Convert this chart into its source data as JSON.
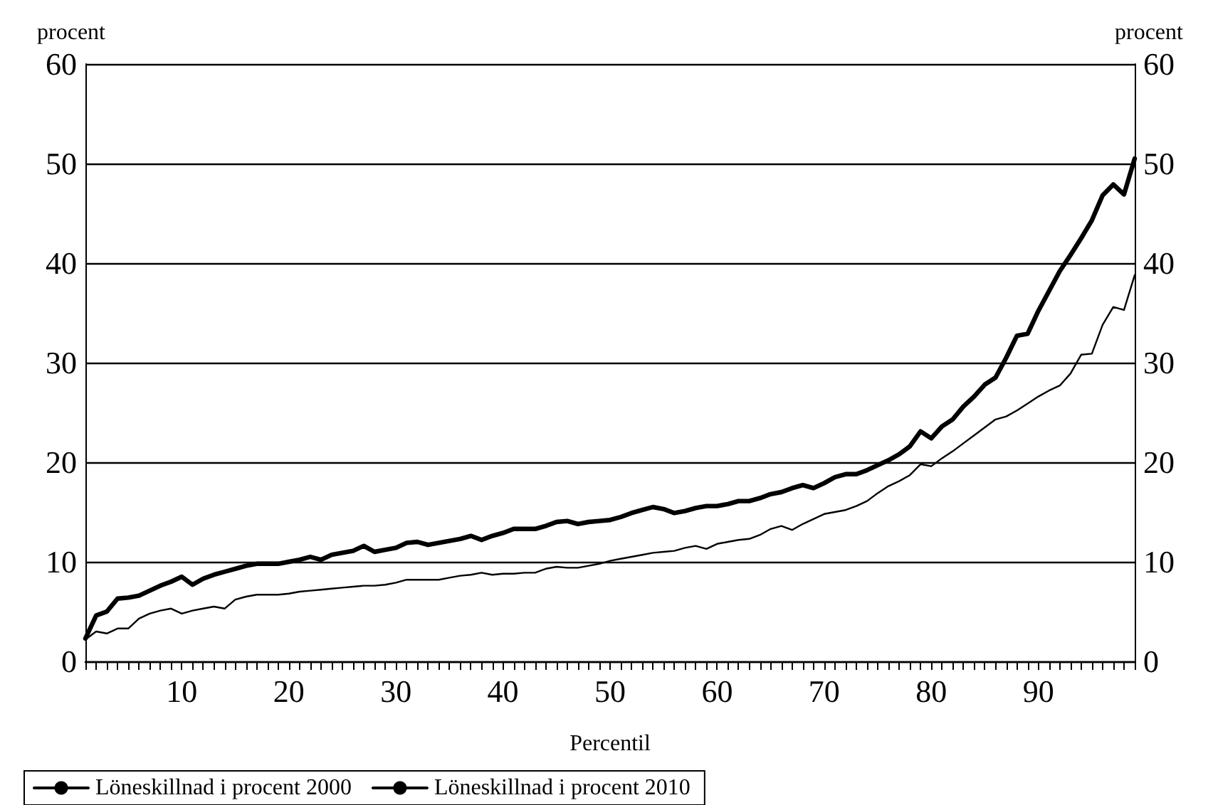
{
  "chart_data": {
    "type": "line",
    "xlabel": "Percentil",
    "ylabel": "procent",
    "y2label": "procent",
    "categories": [
      null,
      null,
      null,
      null,
      null,
      null,
      null,
      null,
      null,
      "10",
      null,
      null,
      null,
      null,
      null,
      null,
      null,
      null,
      null,
      "20",
      null,
      null,
      null,
      null,
      null,
      null,
      null,
      null,
      null,
      "30",
      null,
      null,
      null,
      null,
      null,
      null,
      null,
      null,
      null,
      "40",
      null,
      null,
      null,
      null,
      null,
      null,
      null,
      null,
      null,
      "50",
      null,
      null,
      null,
      null,
      null,
      null,
      null,
      null,
      null,
      "60",
      null,
      null,
      null,
      null,
      null,
      null,
      null,
      null,
      null,
      "70",
      null,
      null,
      null,
      null,
      null,
      null,
      null,
      null,
      null,
      "80",
      null,
      null,
      null,
      null,
      null,
      null,
      null,
      null,
      null,
      "90",
      null,
      null,
      null,
      null,
      null,
      null,
      null,
      null,
      null
    ],
    "ylim": [
      0,
      60
    ],
    "yticks": [
      0,
      10,
      20,
      30,
      40,
      50,
      60
    ],
    "y2lim": [
      0,
      60
    ],
    "y2ticks": [
      0,
      10,
      20,
      30,
      40,
      50,
      60
    ],
    "grid": "y",
    "legend": "bottom",
    "marker": "none",
    "line_style": "solid",
    "series": [
      {
        "name": "Löneskillnad i procent 2000",
        "color": "#000000",
        "values": [
          2.3,
          4.6,
          5.0,
          6.3,
          6.4,
          6.6,
          7.1,
          7.6,
          8.0,
          8.5,
          7.7,
          8.3,
          8.7,
          9.0,
          9.3,
          9.6,
          9.8,
          9.8,
          9.8,
          10.0,
          10.2,
          10.5,
          10.2,
          10.7,
          10.9,
          11.1,
          11.6,
          11.0,
          11.2,
          11.4,
          11.9,
          12.0,
          11.7,
          11.9,
          12.1,
          12.3,
          12.6,
          12.2,
          12.6,
          12.9,
          13.3,
          13.3,
          13.3,
          13.6,
          14.0,
          14.1,
          13.8,
          14.0,
          14.1,
          14.2,
          14.5,
          14.9,
          15.2,
          15.5,
          15.3,
          14.9,
          15.1,
          15.4,
          15.6,
          15.6,
          15.8,
          16.1,
          16.1,
          16.4,
          16.8,
          17.0,
          17.4,
          17.7,
          17.4,
          17.9,
          18.5,
          18.8,
          18.8,
          19.2,
          19.7,
          20.2,
          20.8,
          21.6,
          23.1,
          22.4,
          23.6,
          24.3,
          25.6,
          26.6,
          27.8,
          28.5,
          30.5,
          32.7,
          32.9,
          35.2,
          37.2,
          39.2,
          40.8,
          42.5,
          44.3,
          46.8,
          47.9,
          46.9,
          50.5
        ]
      },
      {
        "name": "Löneskillnad i procent 2010",
        "color": "#000000",
        "values": [
          2.2,
          3.0,
          2.8,
          3.3,
          3.3,
          4.3,
          4.8,
          5.1,
          5.3,
          4.8,
          5.1,
          5.3,
          5.5,
          5.3,
          6.2,
          6.5,
          6.7,
          6.7,
          6.7,
          6.8,
          7.0,
          7.1,
          7.2,
          7.3,
          7.4,
          7.5,
          7.6,
          7.6,
          7.7,
          7.9,
          8.2,
          8.2,
          8.2,
          8.2,
          8.4,
          8.6,
          8.7,
          8.9,
          8.7,
          8.8,
          8.8,
          8.9,
          8.9,
          9.3,
          9.5,
          9.4,
          9.4,
          9.6,
          9.8,
          10.1,
          10.3,
          10.5,
          10.7,
          10.9,
          11.0,
          11.1,
          11.4,
          11.6,
          11.3,
          11.8,
          12.0,
          12.2,
          12.3,
          12.7,
          13.3,
          13.6,
          13.2,
          13.8,
          14.3,
          14.8,
          15.0,
          15.2,
          15.6,
          16.1,
          16.9,
          17.6,
          18.1,
          18.7,
          19.8,
          19.6,
          20.4,
          21.1,
          21.9,
          22.7,
          23.5,
          24.3,
          24.6,
          25.2,
          25.9,
          26.6,
          27.2,
          27.7,
          28.9,
          30.8,
          30.9,
          33.8,
          35.6,
          35.3,
          38.8
        ]
      }
    ]
  }
}
